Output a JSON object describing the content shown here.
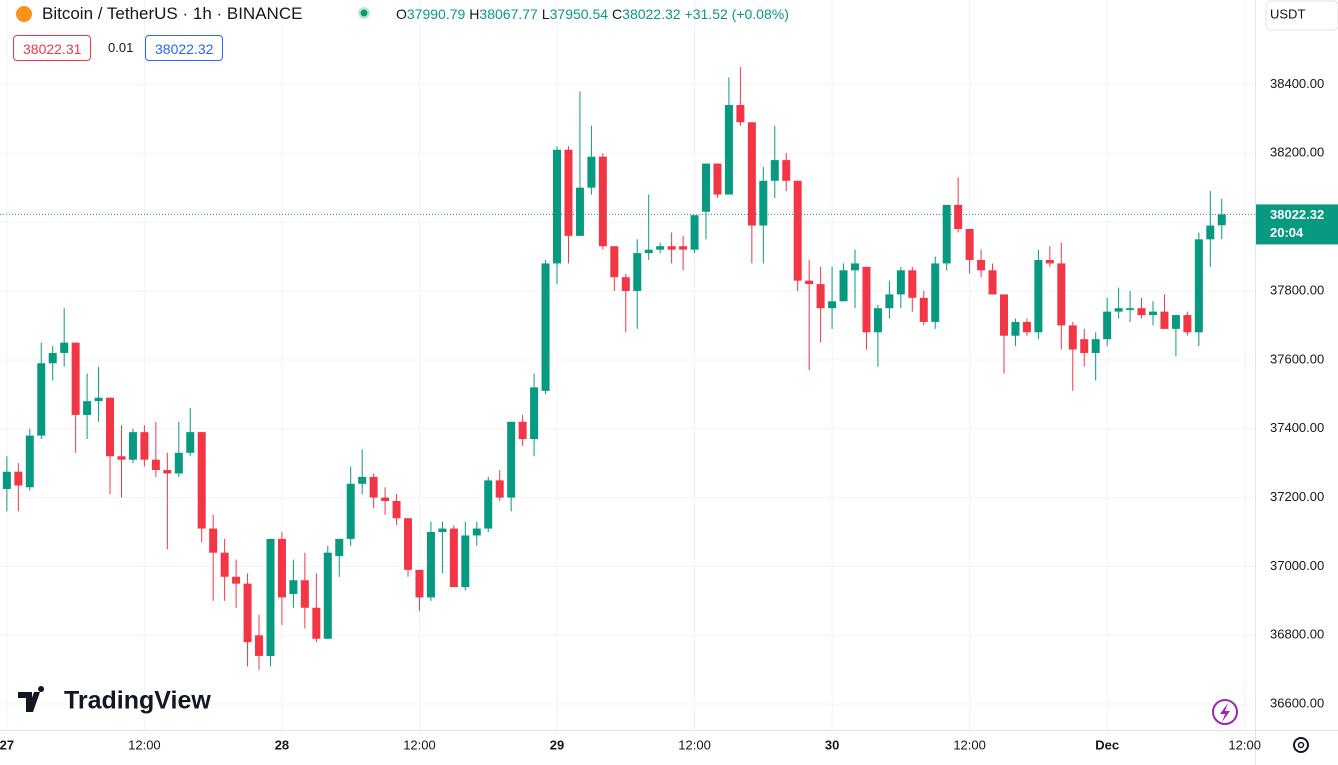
{
  "chart_data": {
    "type": "candlestick",
    "symbol": "Bitcoin / TetherUS · 1h · BINANCE",
    "change": "+31.52 (+0.08%)",
    "bid": "38022.31",
    "spread": "0.01",
    "countdown": "20:04",
    "currency": "USDT",
    "brand": "TradingView",
    "up_color": "#089981",
    "down_color": "#f23645",
    "grid": true,
    "x": [
      0,
      1,
      2,
      3,
      4,
      5,
      6,
      7,
      8,
      9,
      10,
      11,
      12,
      13,
      14,
      15,
      16,
      17,
      18,
      19,
      20,
      21,
      22,
      23,
      24,
      25,
      26,
      27,
      28,
      29,
      30,
      31,
      32,
      33,
      34,
      35,
      36,
      37,
      38,
      39,
      40,
      41,
      42,
      43,
      44,
      45,
      46,
      47,
      48,
      49,
      50,
      51,
      52,
      53,
      54,
      55,
      56,
      57,
      58,
      59,
      60,
      61,
      62,
      63,
      64,
      65,
      66,
      67,
      68,
      69,
      70,
      71,
      72,
      73,
      74,
      75,
      76,
      77,
      78,
      79,
      80,
      81,
      82,
      83,
      84,
      85,
      86,
      87,
      88,
      89,
      90,
      91,
      92,
      93,
      94,
      95,
      96,
      97,
      98,
      99,
      100,
      101,
      102,
      103,
      104,
      105,
      106
    ],
    "open": [
      37225,
      37275,
      37230,
      37380,
      37590,
      37620,
      37650,
      37440,
      37480,
      37490,
      37320,
      37310,
      37390,
      37310,
      37280,
      37270,
      37330,
      37390,
      37110,
      37040,
      36970,
      36950,
      36800,
      36740,
      37080,
      36920,
      36960,
      36880,
      36790,
      37030,
      37080,
      37240,
      37260,
      37200,
      37190,
      37140,
      36990,
      36910,
      37100,
      37110,
      36940,
      37090,
      37110,
      37250,
      37200,
      37420,
      37370,
      37510,
      37880,
      38210,
      37960,
      38100,
      38190,
      37930,
      37840,
      37800,
      37910,
      37920,
      37930,
      37930,
      37920,
      38030,
      38170,
      38080,
      38340,
      38290,
      37990,
      38120,
      38180,
      38120,
      37830,
      37820,
      37750,
      37770,
      37860,
      37870,
      37680,
      37750,
      37790,
      37860,
      37780,
      37710,
      37880,
      38050,
      37980,
      37890,
      37860,
      37790,
      37670,
      37710,
      37680,
      37890,
      37880,
      37700,
      37660,
      37620,
      37660,
      37740,
      37745,
      37750,
      37730,
      37740,
      37690,
      37730,
      37680,
      37950,
      37990.79
    ],
    "high": [
      37320,
      37300,
      37400,
      37650,
      37640,
      37750,
      37650,
      37560,
      37580,
      37490,
      37410,
      37400,
      37410,
      37420,
      37330,
      37420,
      37460,
      37390,
      37150,
      37080,
      37020,
      36980,
      36860,
      37080,
      37100,
      37020,
      37040,
      36980,
      37060,
      37080,
      37290,
      37340,
      37270,
      37230,
      37210,
      37140,
      36990,
      37130,
      37130,
      37120,
      37130,
      37130,
      37260,
      37280,
      37420,
      37440,
      37560,
      37890,
      38220,
      38220,
      38380,
      38280,
      38200,
      37930,
      37850,
      37950,
      38080,
      37940,
      37970,
      37960,
      38020,
      38170,
      38170,
      38420,
      38450,
      38290,
      38160,
      38280,
      38200,
      38120,
      37890,
      37870,
      37870,
      37880,
      37920,
      37870,
      37760,
      37830,
      37870,
      37870,
      37800,
      37900,
      38050,
      38130,
      37980,
      37920,
      37880,
      37790,
      37720,
      37720,
      37920,
      37930,
      37940,
      37710,
      37690,
      37680,
      37780,
      37810,
      37800,
      37780,
      37770,
      37790,
      37730,
      37740,
      37970,
      38090,
      38067.77
    ],
    "low": [
      37160,
      37160,
      37220,
      37370,
      37540,
      37580,
      37330,
      37370,
      37420,
      37210,
      37200,
      37300,
      37290,
      37260,
      37050,
      37260,
      37320,
      37070,
      36900,
      36900,
      36880,
      36710,
      36700,
      36710,
      36830,
      36880,
      36820,
      36780,
      36790,
      36970,
      37060,
      37210,
      37170,
      37150,
      37120,
      36970,
      36870,
      36900,
      36980,
      36940,
      36930,
      37060,
      37100,
      37190,
      37160,
      37350,
      37320,
      37500,
      37820,
      37880,
      37960,
      38080,
      37920,
      37800,
      37680,
      37690,
      37890,
      37910,
      37880,
      37860,
      37910,
      37950,
      38070,
      38080,
      38280,
      37880,
      37880,
      38070,
      38090,
      37800,
      37570,
      37650,
      37690,
      37770,
      37750,
      37630,
      37580,
      37720,
      37750,
      37740,
      37700,
      37690,
      37860,
      37970,
      37850,
      37840,
      37790,
      37560,
      37640,
      37670,
      37660,
      37870,
      37630,
      37510,
      37580,
      37540,
      37640,
      37720,
      37710,
      37720,
      37700,
      37690,
      37610,
      37670,
      37640,
      37870,
      37950.54
    ],
    "close": [
      37275,
      37235,
      37380,
      37590,
      37620,
      37650,
      37440,
      37480,
      37490,
      37320,
      37310,
      37390,
      37310,
      37280,
      37270,
      37330,
      37390,
      37110,
      37040,
      36970,
      36950,
      36780,
      36740,
      37080,
      36910,
      36960,
      36880,
      36790,
      37040,
      37080,
      37240,
      37260,
      37200,
      37190,
      37140,
      36990,
      36910,
      37100,
      37110,
      36940,
      37090,
      37110,
      37250,
      37200,
      37420,
      37370,
      37520,
      37880,
      38210,
      37960,
      38100,
      38190,
      37930,
      37840,
      37800,
      37910,
      37920,
      37930,
      37920,
      37920,
      38020,
      38170,
      38080,
      38340,
      38290,
      37990,
      38120,
      38180,
      38120,
      37830,
      37820,
      37750,
      37770,
      37860,
      37880,
      37680,
      37750,
      37790,
      37860,
      37780,
      37710,
      37880,
      38050,
      37980,
      37890,
      37860,
      37790,
      37670,
      37710,
      37680,
      37890,
      37880,
      37700,
      37630,
      37620,
      37660,
      37740,
      37750,
      37750,
      37730,
      37740,
      37690,
      37730,
      37680,
      37950,
      37990,
      38022.32
    ],
    "xlim": [
      -0.6,
      108.9
    ],
    "ylim": [
      36525,
      38645
    ],
    "xticks": [
      {
        "value": 0,
        "label": "27"
      },
      {
        "value": 12,
        "label": "12:00"
      },
      {
        "value": 24,
        "label": "28"
      },
      {
        "value": 36,
        "label": "12:00"
      },
      {
        "value": 48,
        "label": "29"
      },
      {
        "value": 60,
        "label": "12:00"
      },
      {
        "value": 72,
        "label": "30"
      },
      {
        "value": 84,
        "label": "12:00"
      },
      {
        "value": 96,
        "label": "Dec"
      },
      {
        "value": 108,
        "label": "12:00"
      }
    ],
    "yticks": [
      {
        "value": 36600,
        "label": "36600.00"
      },
      {
        "value": 36800,
        "label": "36800.00"
      },
      {
        "value": 37000,
        "label": "37000.00"
      },
      {
        "value": 37200,
        "label": "37200.00"
      },
      {
        "value": 37400,
        "label": "37400.00"
      },
      {
        "value": 37600,
        "label": "37600.00"
      },
      {
        "value": 37800,
        "label": "37800.00"
      },
      {
        "value": 38000,
        "label": "38000.00"
      },
      {
        "value": 38200,
        "label": "38200.00"
      },
      {
        "value": 38400,
        "label": "38400.00"
      }
    ]
  }
}
